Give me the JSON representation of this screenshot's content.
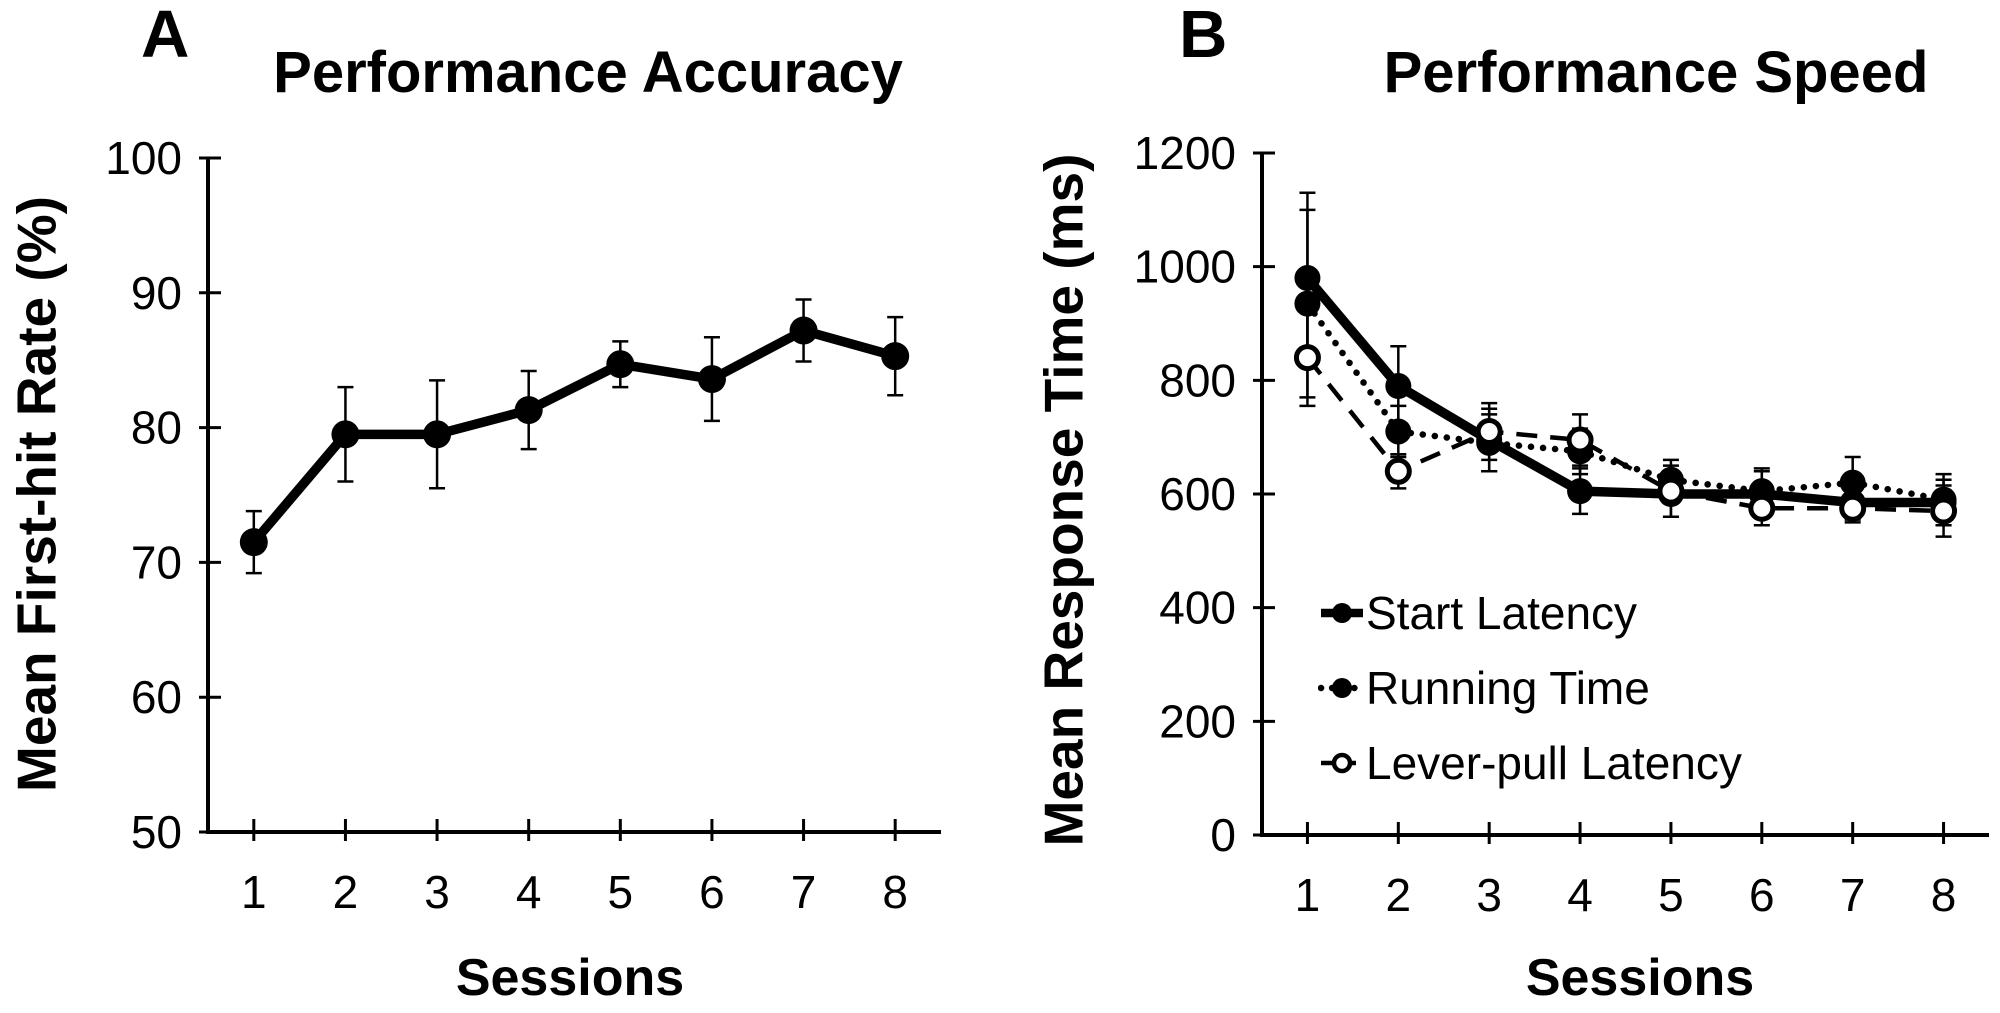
{
  "figure": {
    "background": "#ffffff",
    "ink_color": "#000000"
  },
  "panels": [
    {
      "letter": "A",
      "title": "Performance Accuracy",
      "y_axis_label": "Mean First-hit Rate (%)",
      "x_axis_label": "Sessions"
    },
    {
      "letter": "B",
      "title": "Performance Speed",
      "y_axis_label": "Mean Response Time (ms)",
      "x_axis_label": "Sessions",
      "legend": [
        "Start Latency",
        "Running Time",
        "Lever-pull Latency"
      ]
    }
  ],
  "chart_data": [
    {
      "type": "line",
      "panel": "A",
      "title": "Performance Accuracy",
      "xlabel": "Sessions",
      "ylabel": "Mean First-hit Rate (%)",
      "categories": [
        "1",
        "2",
        "3",
        "4",
        "5",
        "6",
        "7",
        "8"
      ],
      "ylim": [
        50,
        100
      ],
      "y_ticks": [
        50,
        60,
        70,
        80,
        90,
        100
      ],
      "grid": false,
      "legend_position": "none",
      "series": [
        {
          "name": "Mean first-hit rate",
          "line": "solid",
          "marker": "filled",
          "values": [
            71.5,
            79.5,
            79.5,
            81.3,
            84.7,
            83.6,
            87.2,
            85.3
          ],
          "errors": [
            2.3,
            3.5,
            4.0,
            2.9,
            1.7,
            3.1,
            2.3,
            2.9
          ]
        }
      ]
    },
    {
      "type": "line",
      "panel": "B",
      "title": "Performance Speed",
      "xlabel": "Sessions",
      "ylabel": "Mean Response Time (ms)",
      "categories": [
        "1",
        "2",
        "3",
        "4",
        "5",
        "6",
        "7",
        "8"
      ],
      "ylim": [
        0,
        1200
      ],
      "y_ticks": [
        0,
        200,
        400,
        600,
        800,
        1000,
        1200
      ],
      "grid": false,
      "legend_position": "inside-lower-left",
      "series": [
        {
          "name": "Start Latency",
          "line": "solid",
          "marker": "filled",
          "values": [
            980,
            790,
            695,
            605,
            600,
            600,
            585,
            585
          ],
          "errors": [
            150,
            70,
            55,
            40,
            40,
            40,
            30,
            40
          ]
        },
        {
          "name": "Running Time",
          "line": "dotted",
          "marker": "filled",
          "values": [
            935,
            710,
            690,
            675,
            625,
            605,
            620,
            590
          ],
          "errors": [
            165,
            45,
            50,
            40,
            35,
            40,
            45,
            45
          ]
        },
        {
          "name": "Lever-pull Latency",
          "line": "dashed",
          "marker": "open",
          "values": [
            840,
            640,
            710,
            695,
            605,
            575,
            575,
            570
          ],
          "errors": [
            85,
            30,
            50,
            45,
            45,
            30,
            25,
            45
          ]
        }
      ]
    }
  ]
}
